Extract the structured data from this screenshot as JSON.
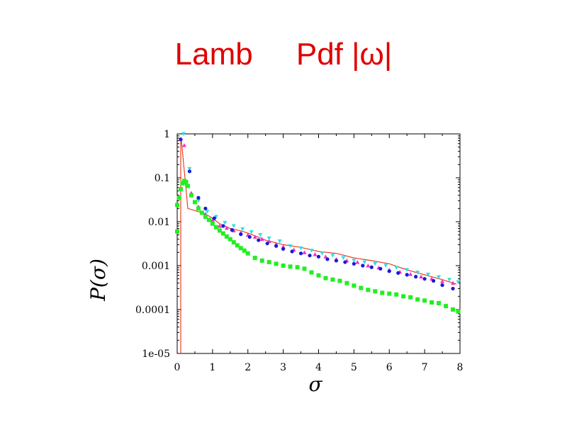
{
  "slide": {
    "title": "Lamb     Pdf |ω|",
    "title_color": "#e00000"
  },
  "chart_data": {
    "type": "scatter",
    "title": "",
    "xlabel": "σ",
    "ylabel": "P(σ)",
    "xlim": [
      0,
      8
    ],
    "ylim": [
      1e-05,
      1
    ],
    "yscale": "log",
    "x_ticks": [
      "0",
      "1",
      "2",
      "3",
      "4",
      "5",
      "6",
      "7",
      "8"
    ],
    "y_ticks": [
      "1e-05",
      "0.0001",
      "0.001",
      "0.01",
      "0.1",
      "1"
    ],
    "grid": false,
    "legend": "none",
    "series": [
      {
        "style": "line",
        "color": "#e8412a",
        "x": [
          0.1,
          0.1,
          0.12,
          0.3,
          0.5,
          0.8,
          1.0,
          1.2,
          1.5,
          1.8,
          2.0,
          2.2,
          2.5,
          3.0,
          3.5,
          4.0,
          4.5,
          5.0,
          5.5,
          6.0,
          6.5,
          7.0,
          7.5,
          7.9
        ],
        "y": [
          1e-05,
          0.8,
          0.7,
          0.02,
          0.018,
          0.015,
          0.012,
          0.009,
          0.007,
          0.0062,
          0.0055,
          0.0048,
          0.0038,
          0.003,
          0.0026,
          0.0021,
          0.0019,
          0.0015,
          0.0013,
          0.0011,
          0.0008,
          0.00062,
          0.00048,
          0.00038
        ]
      },
      {
        "style": "triangle-up",
        "color": "#ee33cc",
        "x": [
          0.2,
          0.4,
          0.6,
          0.8,
          1.0,
          1.2,
          1.4,
          1.6,
          1.8,
          2.0,
          2.2,
          2.4,
          2.6,
          2.8,
          3.0,
          3.3,
          3.6,
          3.9,
          4.2,
          4.5,
          4.8,
          5.1,
          5.4,
          5.7,
          6.0,
          6.3,
          6.6,
          6.9,
          7.2,
          7.5,
          7.8
        ],
        "y": [
          0.55,
          0.045,
          0.022,
          0.015,
          0.011,
          0.008,
          0.0072,
          0.0063,
          0.0056,
          0.005,
          0.0045,
          0.004,
          0.0036,
          0.0031,
          0.0027,
          0.0023,
          0.002,
          0.0018,
          0.0016,
          0.0014,
          0.0013,
          0.0012,
          0.001,
          0.0009,
          0.0008,
          0.00072,
          0.00064,
          0.00056,
          0.0005,
          0.00044,
          0.0004
        ]
      },
      {
        "style": "triangle-down",
        "color": "#33dde0",
        "x": [
          0.18,
          0.35,
          0.6,
          0.85,
          1.1,
          1.35,
          1.6,
          1.85,
          2.1,
          2.35,
          2.6,
          2.9,
          3.2,
          3.5,
          3.8,
          4.1,
          4.4,
          4.7,
          5.0,
          5.3,
          5.6,
          5.9,
          6.2,
          6.5,
          6.8,
          7.1,
          7.4,
          7.7,
          7.95
        ],
        "y": [
          1.0,
          0.16,
          0.03,
          0.017,
          0.013,
          0.0095,
          0.008,
          0.0068,
          0.0058,
          0.005,
          0.0042,
          0.0036,
          0.0028,
          0.0025,
          0.0022,
          0.0019,
          0.0017,
          0.0015,
          0.0013,
          0.0012,
          0.0011,
          0.001,
          0.0009,
          0.0008,
          0.0007,
          0.00063,
          0.00055,
          0.00048,
          0.00042
        ]
      },
      {
        "style": "circle",
        "color": "#1a1ad8",
        "x": [
          0.1,
          0.35,
          0.6,
          0.8,
          1.05,
          1.3,
          1.55,
          1.8,
          2.05,
          2.3,
          2.55,
          2.8,
          3.0,
          3.25,
          3.5,
          3.75,
          4.0,
          4.25,
          4.5,
          4.75,
          5.0,
          5.25,
          5.5,
          5.75,
          6.0,
          6.25,
          6.5,
          6.75,
          7.0,
          7.25,
          7.5,
          7.8
        ],
        "y": [
          0.75,
          0.14,
          0.035,
          0.02,
          0.012,
          0.008,
          0.0065,
          0.0052,
          0.0045,
          0.0038,
          0.0032,
          0.0028,
          0.0024,
          0.0021,
          0.0019,
          0.0017,
          0.0016,
          0.0014,
          0.0013,
          0.0012,
          0.0011,
          0.001,
          0.00092,
          0.00085,
          0.00075,
          0.00068,
          0.00062,
          0.00056,
          0.0005,
          0.00045,
          0.00036,
          0.0003
        ]
      },
      {
        "style": "square",
        "color": "#22ee22",
        "x": [
          0.0,
          0.0,
          0.05,
          0.1,
          0.15,
          0.2,
          0.25,
          0.3,
          0.4,
          0.5,
          0.6,
          0.7,
          0.8,
          0.9,
          1.0,
          1.1,
          1.2,
          1.3,
          1.4,
          1.5,
          1.6,
          1.7,
          1.8,
          1.9,
          2.0,
          2.2,
          2.4,
          2.6,
          2.8,
          3.0,
          3.2,
          3.4,
          3.6,
          3.8,
          4.0,
          4.2,
          4.4,
          4.6,
          4.8,
          5.0,
          5.2,
          5.4,
          5.6,
          5.8,
          6.0,
          6.2,
          6.4,
          6.6,
          6.8,
          7.0,
          7.2,
          7.4,
          7.6,
          7.8,
          7.95
        ],
        "y": [
          0.006,
          0.024,
          0.035,
          0.055,
          0.075,
          0.085,
          0.08,
          0.065,
          0.04,
          0.028,
          0.02,
          0.016,
          0.013,
          0.011,
          0.009,
          0.0075,
          0.0063,
          0.0054,
          0.0046,
          0.004,
          0.0034,
          0.0029,
          0.0025,
          0.0022,
          0.0019,
          0.0015,
          0.0013,
          0.0012,
          0.0011,
          0.001,
          0.00095,
          0.00092,
          0.00085,
          0.0007,
          0.0006,
          0.00052,
          0.00048,
          0.00045,
          0.0004,
          0.00035,
          0.00031,
          0.00028,
          0.00026,
          0.00024,
          0.00023,
          0.00022,
          0.0002,
          0.00019,
          0.00017,
          0.00016,
          0.000145,
          0.00014,
          0.00012,
          0.0001,
          9e-05
        ]
      }
    ]
  }
}
